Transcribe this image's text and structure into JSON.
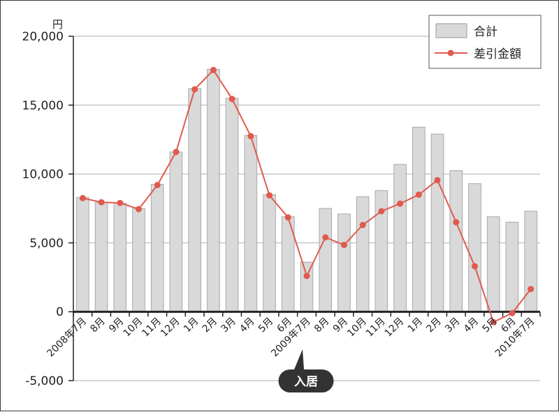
{
  "chart_data": {
    "type": "bar",
    "y_unit": "円",
    "ylim": [
      -5000,
      20000
    ],
    "y_ticks": [
      -5000,
      0,
      5000,
      10000,
      15000,
      20000
    ],
    "y_tick_labels": [
      "-5,000",
      "0",
      "5,000",
      "10,000",
      "15,000",
      "20,000"
    ],
    "grid": true,
    "legend_position": "top-right",
    "categories": [
      "2008年7月",
      "8月",
      "9月",
      "10月",
      "11月",
      "12月",
      "1月",
      "2月",
      "3月",
      "4月",
      "5月",
      "6月",
      "2009年7月",
      "8月",
      "9月",
      "10月",
      "11月",
      "12月",
      "1月",
      "2月",
      "3月",
      "4月",
      "5月",
      "6月",
      "2010年7月"
    ],
    "series": [
      {
        "name": "合計",
        "kind": "bar",
        "color": "#d9d9d9",
        "values": [
          8300,
          7950,
          7900,
          7500,
          9250,
          11600,
          16200,
          17600,
          15500,
          12800,
          8500,
          6900,
          3600,
          7500,
          7100,
          8350,
          8800,
          10700,
          13400,
          12900,
          10250,
          9300,
          6900,
          6500,
          7300
        ]
      },
      {
        "name": "差引金額",
        "kind": "line",
        "color": "#e05a4e",
        "values": [
          8250,
          7950,
          7900,
          7450,
          9200,
          11600,
          16150,
          17550,
          15450,
          12750,
          8450,
          6850,
          2600,
          5400,
          4850,
          6300,
          7300,
          7850,
          8500,
          9550,
          6500,
          3300,
          -750,
          -100,
          1650
        ]
      }
    ],
    "annotation": {
      "text": "入居",
      "category": "2009年7月"
    }
  }
}
